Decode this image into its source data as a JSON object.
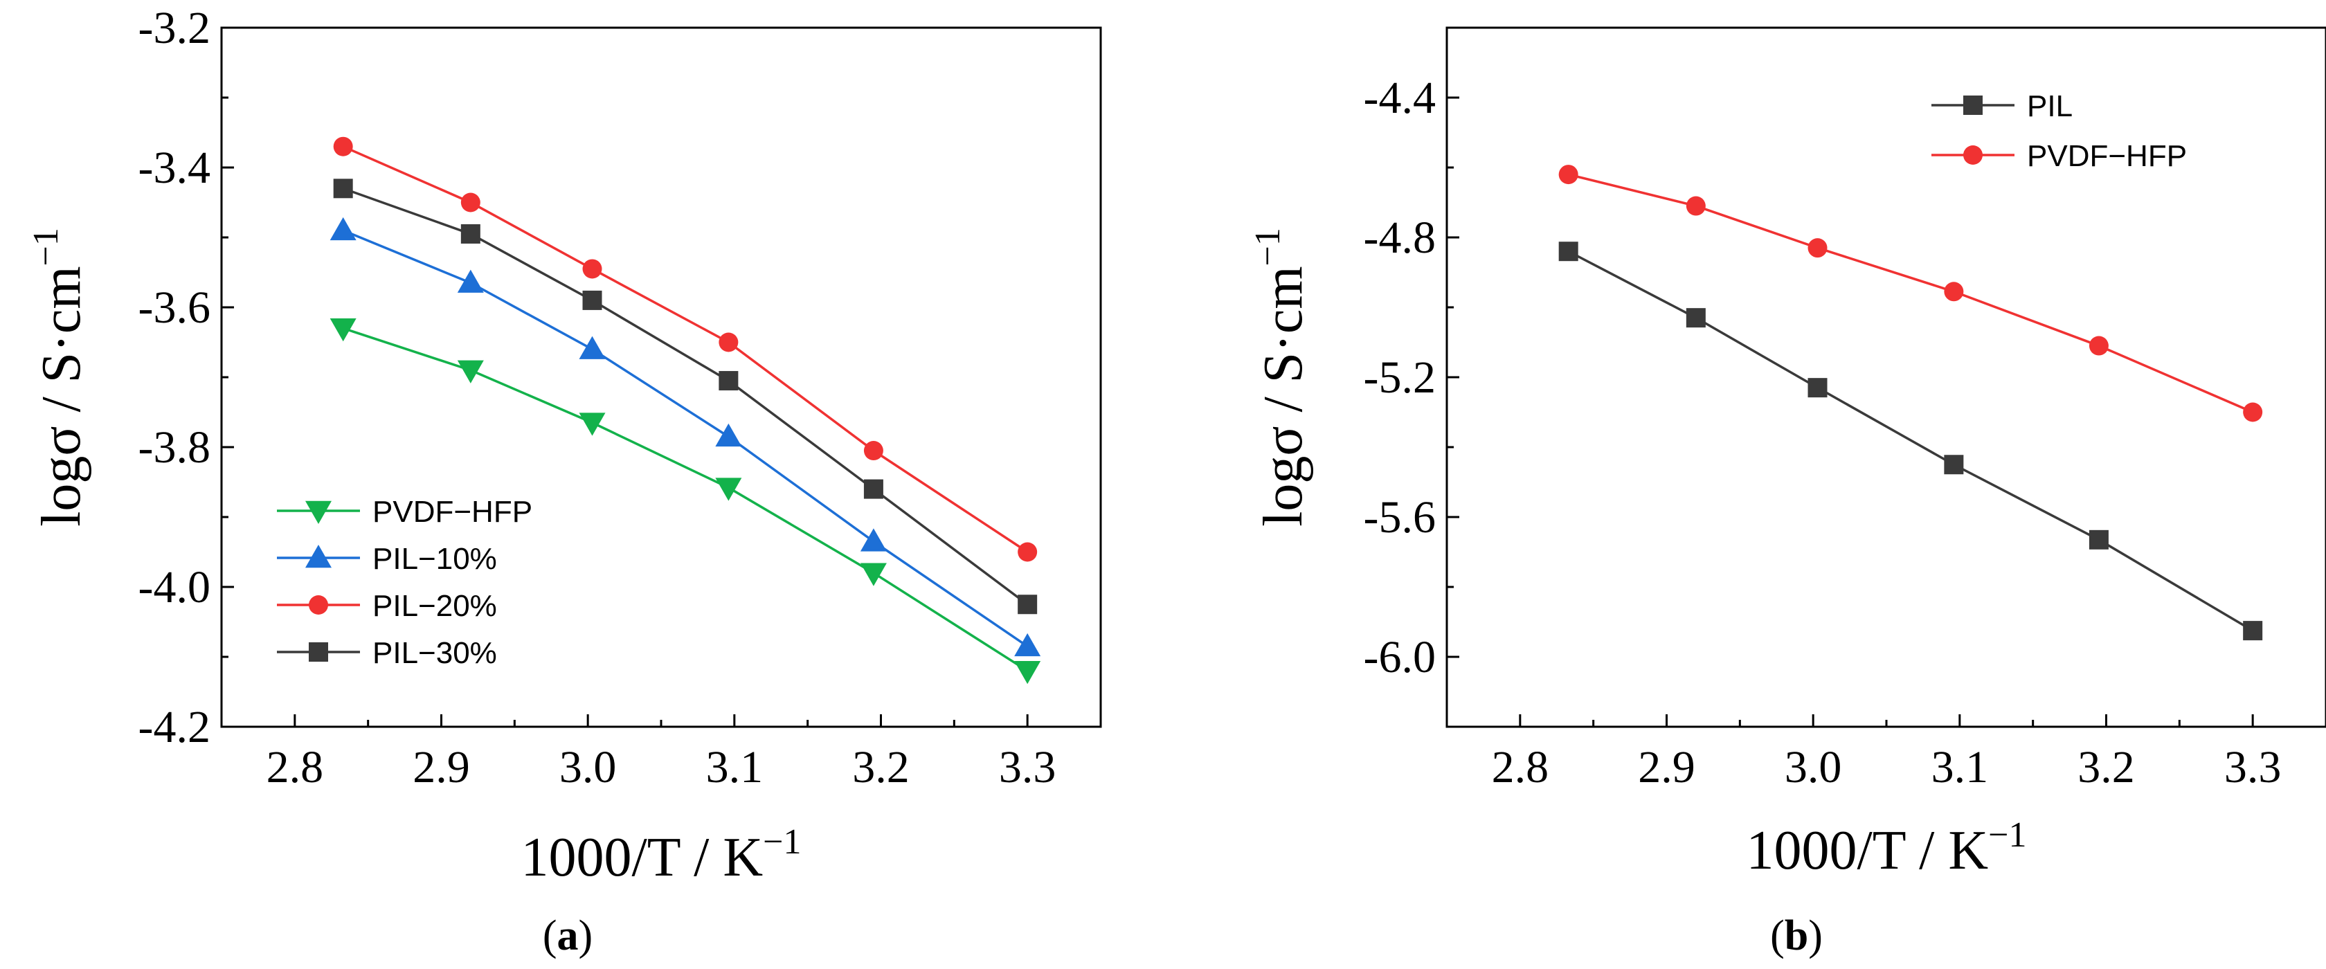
{
  "chart_data": [
    {
      "id": "a",
      "type": "line",
      "panel_label": "a",
      "xlabel_main": "1000/T / K",
      "xlabel_sup": "−1",
      "ylabel_main": "logσ / S·cm",
      "ylabel_sup": "−1",
      "xlim": [
        2.75,
        3.35
      ],
      "ylim": [
        -4.2,
        -3.2
      ],
      "xticks": [
        2.8,
        2.9,
        3.0,
        3.1,
        3.2,
        3.3
      ],
      "xtick_labels": [
        "2.8",
        "2.9",
        "3.0",
        "3.1",
        "3.2",
        "3.3"
      ],
      "yticks": [
        -3.2,
        -3.4,
        -3.6,
        -3.8,
        -4.0,
        -4.2
      ],
      "ytick_labels": [
        "-3.2",
        "-3.4",
        "-3.6",
        "-3.8",
        "-4.0",
        "-4.2"
      ],
      "legend_position": "lower-left",
      "x": [
        2.833,
        2.92,
        3.003,
        3.096,
        3.195,
        3.3
      ],
      "series": [
        {
          "name": "PVDF−HFP",
          "color": "#13b24b",
          "marker": "triangle-down",
          "values": [
            -3.63,
            -3.69,
            -3.765,
            -3.858,
            -3.98,
            -4.12
          ]
        },
        {
          "name": "PIL−10%",
          "color": "#1d6fd6",
          "marker": "triangle-up",
          "values": [
            -3.49,
            -3.565,
            -3.66,
            -3.785,
            -3.935,
            -4.085
          ]
        },
        {
          "name": "PIL−20%",
          "color": "#f03232",
          "marker": "circle",
          "values": [
            -3.37,
            -3.45,
            -3.545,
            -3.65,
            -3.805,
            -3.95
          ]
        },
        {
          "name": "PIL−30%",
          "color": "#3a3a3a",
          "marker": "square",
          "values": [
            -3.43,
            -3.495,
            -3.59,
            -3.705,
            -3.86,
            -4.025
          ]
        }
      ]
    },
    {
      "id": "b",
      "type": "line",
      "panel_label": "b",
      "xlabel_main": "1000/T / K",
      "xlabel_sup": "−1",
      "ylabel_main": "logσ / S·cm",
      "ylabel_sup": "−1",
      "xlim": [
        2.75,
        3.35
      ],
      "ylim": [
        -6.2,
        -4.2
      ],
      "xticks": [
        2.8,
        2.9,
        3.0,
        3.1,
        3.2,
        3.3
      ],
      "xtick_labels": [
        "2.8",
        "2.9",
        "3.0",
        "3.1",
        "3.2",
        "3.3"
      ],
      "yticks": [
        -4.4,
        -4.8,
        -5.2,
        -5.6,
        -6.0
      ],
      "ytick_labels": [
        "-4.4",
        "-4.8",
        "-5.2",
        "-5.6",
        "-6.0"
      ],
      "legend_position": "top-right",
      "x": [
        2.833,
        2.92,
        3.003,
        3.096,
        3.195,
        3.3
      ],
      "series": [
        {
          "name": "PIL",
          "color": "#3a3a3a",
          "marker": "square",
          "values": [
            -4.84,
            -5.03,
            -5.23,
            -5.45,
            -5.665,
            -5.925
          ]
        },
        {
          "name": "PVDF−HFP",
          "color": "#f03232",
          "marker": "circle",
          "values": [
            -4.62,
            -4.71,
            -4.83,
            -4.955,
            -5.11,
            -5.3
          ]
        }
      ]
    }
  ]
}
